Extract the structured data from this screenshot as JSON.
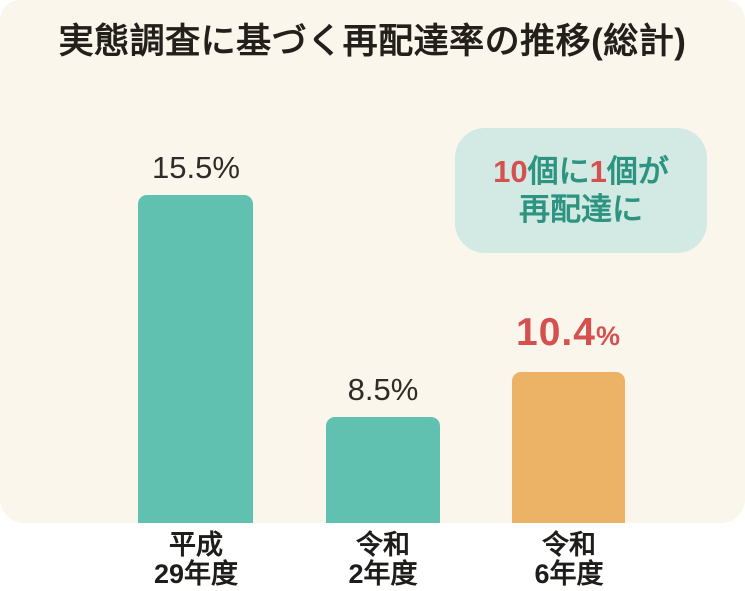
{
  "title": "実態調査に基づく再配達率の推移(総計)",
  "chart_data": {
    "type": "bar",
    "title": "実態調査に基づく再配達率の推移(総計)",
    "categories": [
      "平成29年度",
      "令和2年度",
      "令和6年度"
    ],
    "values": [
      15.5,
      8.5,
      10.4
    ],
    "value_labels": [
      "15.5%",
      "8.5%",
      "10.4%"
    ],
    "unit": "%",
    "xlabel": "",
    "ylabel": "",
    "grid": false,
    "legend": "none",
    "bar_colors": [
      "#60C1B1",
      "#60C1B1",
      "#ECB367"
    ],
    "highlighted_bar_index": 2,
    "annotation": "10個に1個が再配達に"
  },
  "bars": [
    {
      "value": "15.5",
      "pct": "%",
      "label_line1": "平成",
      "label_line2": "29年度"
    },
    {
      "value": "8.5",
      "pct": "%",
      "label_line1": "令和",
      "label_line2": "2年度"
    },
    {
      "value": "10.4",
      "pct": "%",
      "label_line1": "令和",
      "label_line2": "6年度"
    }
  ],
  "callout": {
    "segments": [
      {
        "text": "10",
        "emphasis": true
      },
      {
        "text": "個に",
        "emphasis": false
      },
      {
        "text": "1",
        "emphasis": true
      },
      {
        "text": "個が",
        "emphasis": false
      }
    ],
    "line2": "再配達に",
    "bg_color": "#D3E9E3",
    "text_color": "#2C9480",
    "emphasis_color": "#D5514F"
  },
  "colors": {
    "page_bg": "#FFFFFF",
    "panel_bg": "#FAF6EC",
    "teal_bar": "#60C1B1",
    "orange_bar": "#ECB367",
    "title_text": "#23201C",
    "value_text": "#2E2B28",
    "highlight_text": "#D5514F"
  }
}
